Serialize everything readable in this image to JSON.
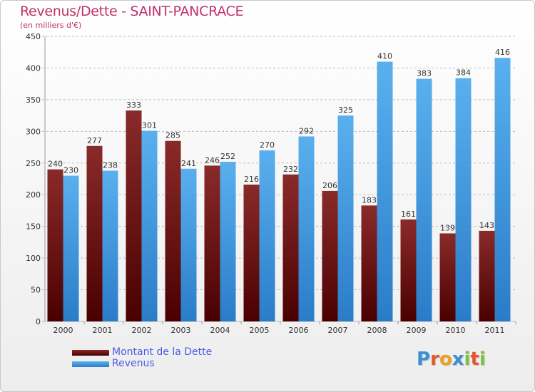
{
  "chart_data": {
    "type": "bar",
    "title": "Revenus/Dette - SAINT-PANCRACE",
    "subtitle": "(en milliers d'€)",
    "categories": [
      "2000",
      "2001",
      "2002",
      "2003",
      "2004",
      "2005",
      "2006",
      "2007",
      "2008",
      "2009",
      "2010",
      "2011"
    ],
    "series": [
      {
        "name": "Montant de la Dette",
        "color": "#7a1a1a",
        "values": [
          240,
          277,
          333,
          285,
          246,
          216,
          232,
          206,
          183,
          161,
          139,
          143
        ]
      },
      {
        "name": "Revenus",
        "color": "#4aa3e6",
        "values": [
          230,
          238,
          301,
          241,
          252,
          270,
          292,
          325,
          410,
          383,
          384,
          416
        ]
      }
    ],
    "yticks": [
      0,
      50,
      100,
      150,
      200,
      250,
      300,
      350,
      400,
      450
    ],
    "ylim": [
      0,
      450
    ],
    "grid": true,
    "legend": "bottom-left"
  },
  "logo": {
    "letters": [
      "P",
      "r",
      "o",
      "x",
      "i",
      "t",
      "i"
    ],
    "colors": [
      "#3a8fd8",
      "#e8552a",
      "#f0a020",
      "#3a8fd8",
      "#7cc242",
      "#e8552a",
      "#7cc242"
    ]
  }
}
